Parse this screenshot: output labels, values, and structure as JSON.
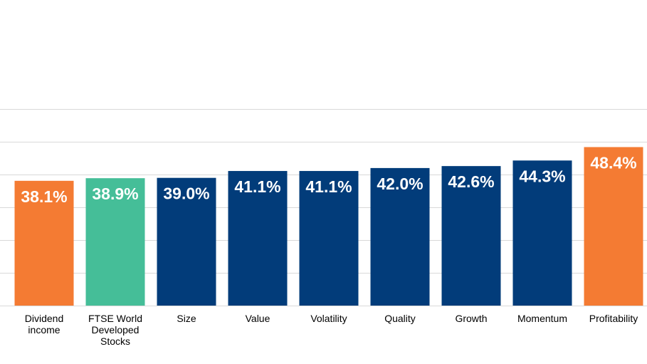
{
  "chart_data": {
    "type": "bar",
    "title": "",
    "xlabel": "",
    "ylabel": "",
    "ylim": [
      0,
      60
    ],
    "grid": true,
    "categories": [
      "Dividend income",
      "FTSE World Developed Stocks",
      "Size",
      "Value",
      "Volatility",
      "Quality",
      "Growth",
      "Momentum",
      "Profitability"
    ],
    "category_lines": [
      [
        "Dividend",
        "income"
      ],
      [
        "FTSE World",
        "Developed",
        "Stocks"
      ],
      [
        "Size"
      ],
      [
        "Value"
      ],
      [
        "Volatility"
      ],
      [
        "Quality"
      ],
      [
        "Growth"
      ],
      [
        "Momentum"
      ],
      [
        "Profitability"
      ]
    ],
    "values": [
      38.1,
      38.9,
      39.0,
      41.1,
      41.1,
      42.0,
      42.6,
      44.3,
      48.4
    ],
    "value_labels": [
      "38.1%",
      "38.9%",
      "39.0%",
      "41.1%",
      "41.1%",
      "42.0%",
      "42.6%",
      "44.3%",
      "48.4%"
    ],
    "colors": [
      "#F47B33",
      "#45BE98",
      "#023C7A",
      "#023C7A",
      "#023C7A",
      "#023C7A",
      "#023C7A",
      "#023C7A",
      "#F47B33"
    ]
  }
}
